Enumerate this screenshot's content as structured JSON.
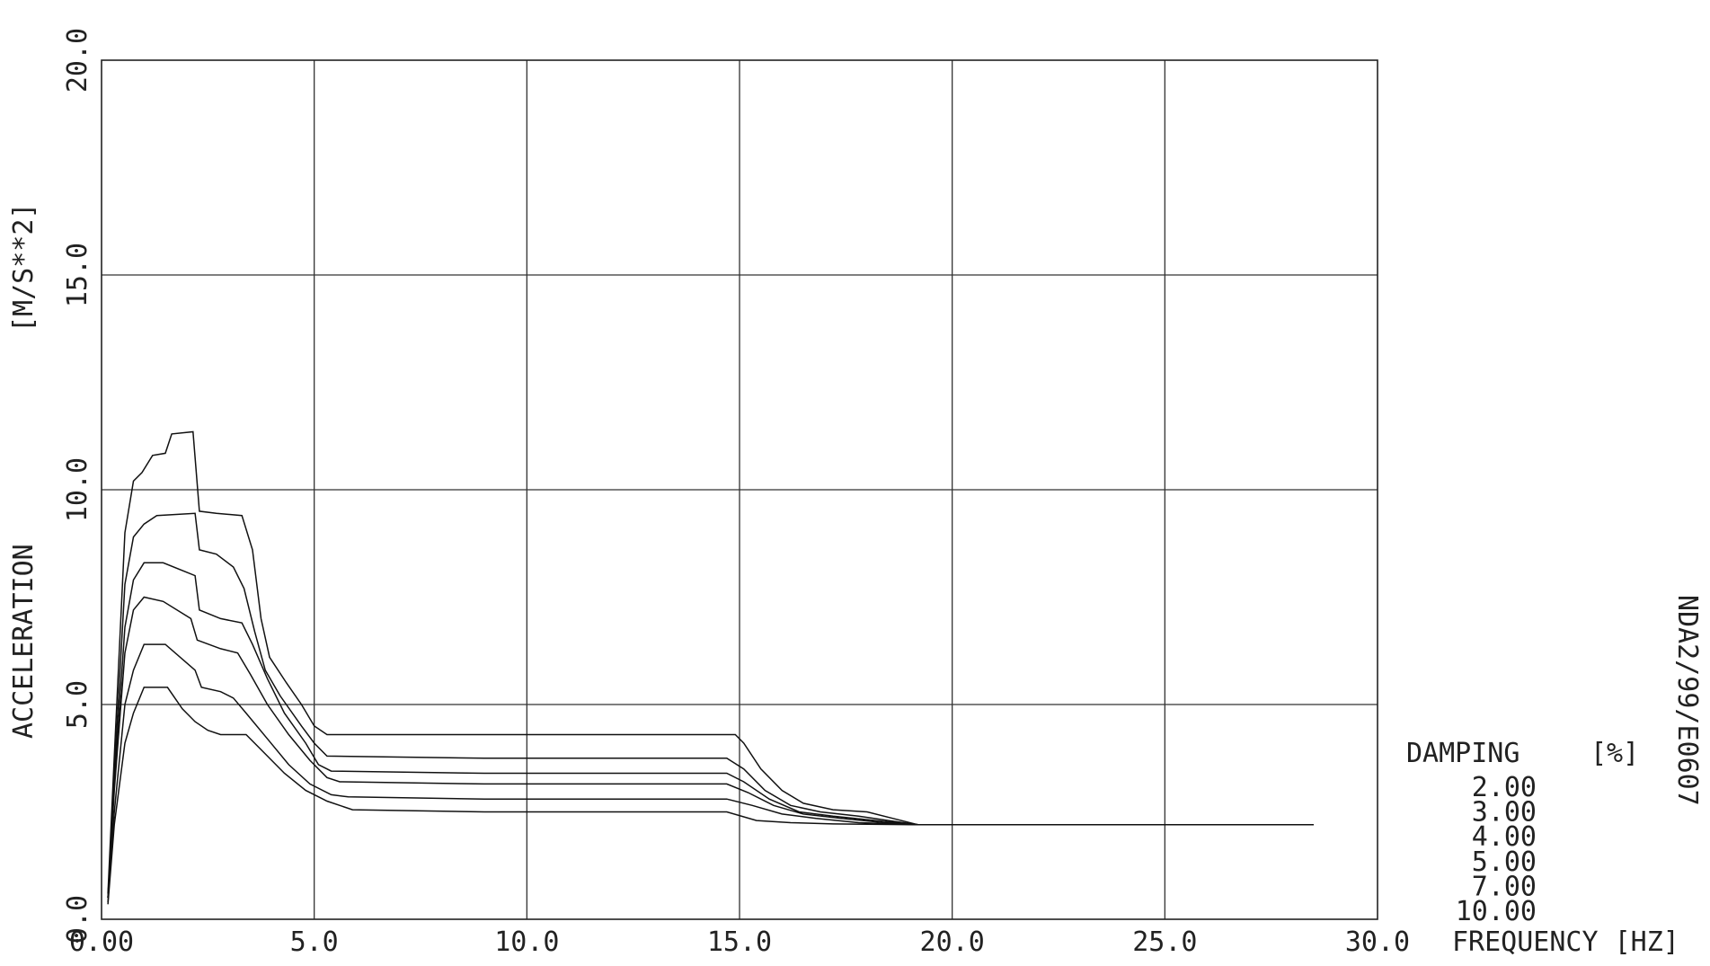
{
  "chart_data": {
    "type": "line",
    "title": "",
    "xlabel": "FREQUENCY [HZ]",
    "ylabel": "ACCELERATION",
    "yunit": "[M/S**2]",
    "xlim": [
      0,
      30
    ],
    "ylim": [
      0,
      20
    ],
    "x_ticks": [
      "0.00",
      "5.0",
      "10.0",
      "15.0",
      "20.0",
      "25.0",
      "30.0"
    ],
    "y_ticks": [
      "0.0",
      "5.0",
      "10.0",
      "15.0",
      "20.0"
    ],
    "grid": true,
    "side_label": "NDA2/99/E0607",
    "legend": {
      "title": "DAMPING",
      "unit": "[%]",
      "entries": [
        "2.00",
        "3.00",
        "4.00",
        "5.00",
        "7.00",
        "10.00"
      ]
    },
    "series": [
      {
        "name": "2.00",
        "points": [
          [
            0.15,
            0.6
          ],
          [
            0.3,
            3.8
          ],
          [
            0.55,
            9.0
          ],
          [
            0.75,
            10.2
          ],
          [
            0.95,
            10.4
          ],
          [
            1.2,
            10.8
          ],
          [
            1.5,
            10.85
          ],
          [
            1.65,
            11.3
          ],
          [
            2.15,
            11.35
          ],
          [
            2.3,
            9.5
          ],
          [
            2.7,
            9.45
          ],
          [
            3.3,
            9.4
          ],
          [
            3.55,
            8.6
          ],
          [
            3.75,
            7.0
          ],
          [
            3.95,
            6.1
          ],
          [
            4.35,
            5.5
          ],
          [
            4.7,
            5.0
          ],
          [
            5.0,
            4.5
          ],
          [
            5.3,
            4.3
          ],
          [
            9.0,
            4.3
          ],
          [
            14.9,
            4.3
          ],
          [
            15.1,
            4.1
          ],
          [
            15.5,
            3.5
          ],
          [
            16.0,
            3.0
          ],
          [
            16.5,
            2.7
          ],
          [
            17.2,
            2.55
          ],
          [
            18.0,
            2.5
          ],
          [
            18.6,
            2.35
          ],
          [
            19.2,
            2.2
          ],
          [
            23.0,
            2.2
          ],
          [
            28.5,
            2.2
          ]
        ]
      },
      {
        "name": "3.00",
        "points": [
          [
            0.15,
            0.5
          ],
          [
            0.3,
            3.4
          ],
          [
            0.55,
            7.8
          ],
          [
            0.75,
            8.9
          ],
          [
            1.0,
            9.2
          ],
          [
            1.3,
            9.4
          ],
          [
            2.2,
            9.45
          ],
          [
            2.3,
            8.6
          ],
          [
            2.7,
            8.5
          ],
          [
            3.1,
            8.2
          ],
          [
            3.35,
            7.7
          ],
          [
            3.6,
            6.7
          ],
          [
            3.85,
            5.8
          ],
          [
            4.2,
            5.2
          ],
          [
            4.7,
            4.5
          ],
          [
            5.0,
            4.1
          ],
          [
            5.3,
            3.8
          ],
          [
            9.0,
            3.75
          ],
          [
            14.7,
            3.75
          ],
          [
            15.1,
            3.5
          ],
          [
            15.6,
            3.0
          ],
          [
            16.2,
            2.65
          ],
          [
            16.9,
            2.5
          ],
          [
            17.8,
            2.4
          ],
          [
            18.5,
            2.3
          ],
          [
            19.2,
            2.2
          ]
        ]
      },
      {
        "name": "4.00",
        "points": [
          [
            0.15,
            0.5
          ],
          [
            0.3,
            3.2
          ],
          [
            0.55,
            6.8
          ],
          [
            0.75,
            7.9
          ],
          [
            1.0,
            8.3
          ],
          [
            1.45,
            8.3
          ],
          [
            2.2,
            8.0
          ],
          [
            2.3,
            7.2
          ],
          [
            2.8,
            7.0
          ],
          [
            3.3,
            6.9
          ],
          [
            3.55,
            6.4
          ],
          [
            3.9,
            5.6
          ],
          [
            4.3,
            4.8
          ],
          [
            4.8,
            4.1
          ],
          [
            5.1,
            3.6
          ],
          [
            5.4,
            3.45
          ],
          [
            9.0,
            3.4
          ],
          [
            14.7,
            3.4
          ],
          [
            15.1,
            3.2
          ],
          [
            15.7,
            2.8
          ],
          [
            16.4,
            2.5
          ],
          [
            17.2,
            2.4
          ],
          [
            18.2,
            2.3
          ],
          [
            19.2,
            2.2
          ]
        ]
      },
      {
        "name": "5.00",
        "points": [
          [
            0.15,
            0.5
          ],
          [
            0.3,
            3.0
          ],
          [
            0.55,
            6.2
          ],
          [
            0.75,
            7.2
          ],
          [
            1.0,
            7.5
          ],
          [
            1.45,
            7.4
          ],
          [
            2.1,
            7.0
          ],
          [
            2.25,
            6.5
          ],
          [
            2.8,
            6.3
          ],
          [
            3.2,
            6.2
          ],
          [
            3.5,
            5.7
          ],
          [
            3.9,
            5.0
          ],
          [
            4.4,
            4.3
          ],
          [
            4.9,
            3.7
          ],
          [
            5.3,
            3.3
          ],
          [
            5.6,
            3.2
          ],
          [
            9.0,
            3.15
          ],
          [
            14.7,
            3.15
          ],
          [
            15.2,
            2.95
          ],
          [
            15.8,
            2.65
          ],
          [
            16.5,
            2.45
          ],
          [
            17.4,
            2.35
          ],
          [
            18.4,
            2.25
          ],
          [
            19.2,
            2.2
          ]
        ]
      },
      {
        "name": "7.00",
        "points": [
          [
            0.15,
            0.4
          ],
          [
            0.3,
            2.5
          ],
          [
            0.55,
            5.0
          ],
          [
            0.75,
            5.8
          ],
          [
            1.0,
            6.4
          ],
          [
            1.5,
            6.4
          ],
          [
            2.2,
            5.8
          ],
          [
            2.35,
            5.4
          ],
          [
            2.8,
            5.3
          ],
          [
            3.1,
            5.15
          ],
          [
            3.4,
            4.8
          ],
          [
            3.9,
            4.2
          ],
          [
            4.4,
            3.6
          ],
          [
            4.9,
            3.15
          ],
          [
            5.4,
            2.9
          ],
          [
            5.8,
            2.85
          ],
          [
            9.0,
            2.8
          ],
          [
            14.7,
            2.8
          ],
          [
            15.3,
            2.65
          ],
          [
            16.0,
            2.45
          ],
          [
            16.8,
            2.35
          ],
          [
            17.8,
            2.25
          ],
          [
            19.2,
            2.2
          ]
        ]
      },
      {
        "name": "10.00",
        "points": [
          [
            0.15,
            0.35
          ],
          [
            0.3,
            2.2
          ],
          [
            0.55,
            4.1
          ],
          [
            0.75,
            4.8
          ],
          [
            1.0,
            5.4
          ],
          [
            1.55,
            5.4
          ],
          [
            1.9,
            4.9
          ],
          [
            2.2,
            4.6
          ],
          [
            2.5,
            4.4
          ],
          [
            2.8,
            4.3
          ],
          [
            3.4,
            4.3
          ],
          [
            3.8,
            3.9
          ],
          [
            4.3,
            3.4
          ],
          [
            4.8,
            3.0
          ],
          [
            5.3,
            2.75
          ],
          [
            5.9,
            2.55
          ],
          [
            9.0,
            2.5
          ],
          [
            14.7,
            2.5
          ],
          [
            15.4,
            2.3
          ],
          [
            16.2,
            2.25
          ],
          [
            17.2,
            2.22
          ],
          [
            19.2,
            2.2
          ]
        ]
      }
    ]
  }
}
